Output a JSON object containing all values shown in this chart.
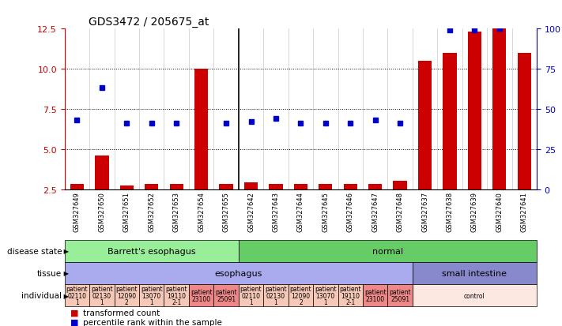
{
  "title": "GDS3472 / 205675_at",
  "samples": [
    "GSM327649",
    "GSM327650",
    "GSM327651",
    "GSM327652",
    "GSM327653",
    "GSM327654",
    "GSM327655",
    "GSM327642",
    "GSM327643",
    "GSM327644",
    "GSM327645",
    "GSM327646",
    "GSM327647",
    "GSM327648",
    "GSM327637",
    "GSM327638",
    "GSM327639",
    "GSM327640",
    "GSM327641"
  ],
  "bar_values": [
    2.8,
    4.6,
    2.7,
    2.8,
    2.8,
    10.0,
    2.8,
    2.9,
    2.8,
    2.8,
    2.8,
    2.8,
    2.8,
    3.0,
    10.5,
    11.0,
    12.3,
    12.5,
    11.0
  ],
  "dot_values": [
    6.8,
    8.8,
    6.6,
    6.6,
    6.6,
    null,
    6.6,
    6.7,
    6.9,
    6.6,
    6.6,
    6.6,
    6.8,
    6.6,
    null,
    12.4,
    12.4,
    12.5,
    null
  ],
  "ylim_left": [
    2.5,
    12.5
  ],
  "ylim_right": [
    0,
    100
  ],
  "yticks_left": [
    2.5,
    5.0,
    7.5,
    10.0,
    12.5
  ],
  "yticks_right": [
    0,
    25,
    50,
    75,
    100
  ],
  "bar_color": "#cc0000",
  "dot_color": "#0000cc",
  "disease_state_groups": [
    {
      "label": "Barrett's esophagus",
      "start": 0,
      "end": 7,
      "color": "#99ee99"
    },
    {
      "label": "normal",
      "start": 7,
      "end": 19,
      "color": "#66cc66"
    }
  ],
  "tissue_groups": [
    {
      "label": "esophagus",
      "start": 0,
      "end": 14,
      "color": "#aaaaee"
    },
    {
      "label": "small intestine",
      "start": 14,
      "end": 19,
      "color": "#8888cc"
    }
  ],
  "individual_groups": [
    {
      "label": "patient\n02110\n1",
      "start": 0,
      "end": 1,
      "color": "#f5c8b8"
    },
    {
      "label": "patient\n02130\n1",
      "start": 1,
      "end": 2,
      "color": "#f5c8b8"
    },
    {
      "label": "patient\n12090\n2",
      "start": 2,
      "end": 3,
      "color": "#f5c8b8"
    },
    {
      "label": "patient\n13070\n1",
      "start": 3,
      "end": 4,
      "color": "#f5c8b8"
    },
    {
      "label": "patient\n19110\n2-1",
      "start": 4,
      "end": 5,
      "color": "#f5c8b8"
    },
    {
      "label": "patient\n23100",
      "start": 5,
      "end": 6,
      "color": "#ee8888"
    },
    {
      "label": "patient\n25091",
      "start": 6,
      "end": 7,
      "color": "#ee8888"
    },
    {
      "label": "patient\n02110\n1",
      "start": 7,
      "end": 8,
      "color": "#f5c8b8"
    },
    {
      "label": "patient\n02130\n1",
      "start": 8,
      "end": 9,
      "color": "#f5c8b8"
    },
    {
      "label": "patient\n12090\n2",
      "start": 9,
      "end": 10,
      "color": "#f5c8b8"
    },
    {
      "label": "patient\n13070\n1",
      "start": 10,
      "end": 11,
      "color": "#f5c8b8"
    },
    {
      "label": "patient\n19110\n2-1",
      "start": 11,
      "end": 12,
      "color": "#f5c8b8"
    },
    {
      "label": "patient\n23100",
      "start": 12,
      "end": 13,
      "color": "#ee8888"
    },
    {
      "label": "patient\n25091",
      "start": 13,
      "end": 14,
      "color": "#ee8888"
    },
    {
      "label": "control",
      "start": 14,
      "end": 19,
      "color": "#fce8e0"
    }
  ],
  "legend_items": [
    {
      "color": "#cc0000",
      "label": "transformed count"
    },
    {
      "color": "#0000cc",
      "label": "percentile rank within the sample"
    }
  ],
  "separator_after": 6,
  "bg_color": "#ffffff"
}
